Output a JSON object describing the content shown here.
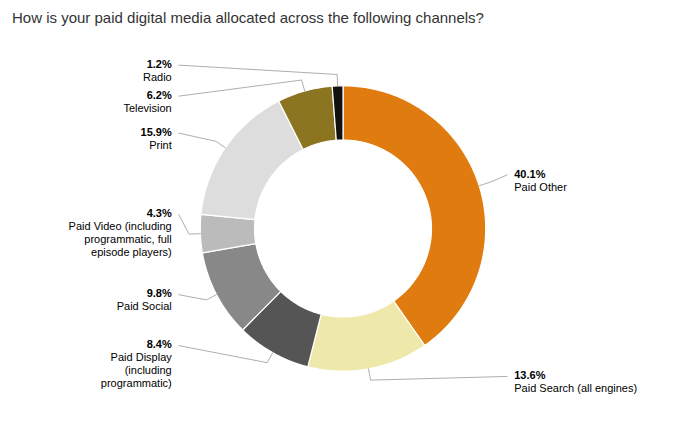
{
  "chart_data": {
    "type": "pie",
    "title": "How is your paid digital media allocated across the following channels?",
    "categories": [
      "Paid Other",
      "Paid Search (all engines)",
      "Paid Display\n(including\nprogrammatic)",
      "Paid Social",
      "Paid Video (including\nprogrammatic, full\nepisode players)",
      "Print",
      "Television",
      "Radio"
    ],
    "values": [
      40.1,
      13.6,
      8.4,
      9.8,
      4.3,
      15.9,
      6.2,
      1.2
    ],
    "value_labels": [
      "40.1%",
      "13.6%",
      "8.4%",
      "9.8%",
      "4.3%",
      "15.9%",
      "6.2%",
      "1.2%"
    ],
    "colors": [
      "#E07B10",
      "#EEE8AA",
      "#555555",
      "#888888",
      "#BBBBBB",
      "#DDDDDD",
      "#8B7520",
      "#111111"
    ],
    "data_labels": true
  }
}
